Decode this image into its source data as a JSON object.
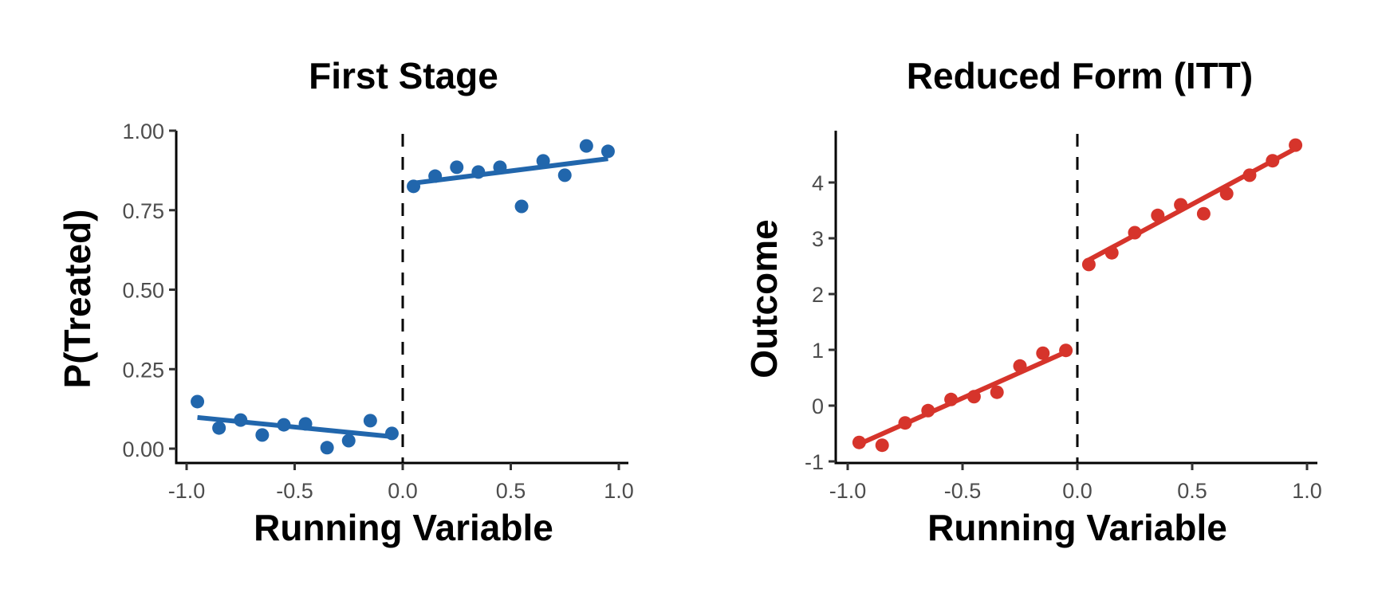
{
  "chart_data": [
    {
      "type": "scatter",
      "title": "First Stage",
      "xlabel": "Running Variable",
      "ylabel": "P(Treated)",
      "xlim": [
        -1.0,
        1.0
      ],
      "ylim": [
        0.0,
        1.0
      ],
      "xticks": [
        -1.0,
        -0.5,
        0.0,
        0.5,
        1.0
      ],
      "xtick_labels": [
        "-1.0",
        "-0.5",
        "0.0",
        "0.5",
        "1.0"
      ],
      "yticks": [
        0.0,
        0.25,
        0.5,
        0.75,
        1.0
      ],
      "ytick_labels": [
        "0.00",
        "0.25",
        "0.50",
        "0.75",
        "1.00"
      ],
      "grid": false,
      "cutoff": 0.0,
      "color": "#2166ac",
      "series": [
        {
          "name": "below cutoff",
          "x": [
            -0.95,
            -0.85,
            -0.75,
            -0.65,
            -0.55,
            -0.45,
            -0.35,
            -0.25,
            -0.15,
            -0.05
          ],
          "y": [
            0.148,
            0.065,
            0.09,
            0.043,
            0.075,
            0.078,
            0.003,
            0.025,
            0.088,
            0.048
          ],
          "fit": {
            "x": [
              -0.95,
              -0.05
            ],
            "y": [
              0.098,
              0.038
            ]
          }
        },
        {
          "name": "above cutoff",
          "x": [
            0.05,
            0.15,
            0.25,
            0.35,
            0.45,
            0.55,
            0.65,
            0.75,
            0.85,
            0.95
          ],
          "y": [
            0.825,
            0.857,
            0.885,
            0.87,
            0.885,
            0.762,
            0.905,
            0.86,
            0.952,
            0.935
          ],
          "fit": {
            "x": [
              0.05,
              0.95
            ],
            "y": [
              0.835,
              0.912
            ]
          }
        }
      ]
    },
    {
      "type": "scatter",
      "title": "Reduced Form (ITT)",
      "xlabel": "Running Variable",
      "ylabel": "Outcome",
      "xlim": [
        -1.0,
        1.0
      ],
      "ylim": [
        -1.0,
        4.9
      ],
      "xticks": [
        -1.0,
        -0.5,
        0.0,
        0.5,
        1.0
      ],
      "xtick_labels": [
        "-1.0",
        "-0.5",
        "0.0",
        "0.5",
        "1.0"
      ],
      "yticks": [
        -1,
        0,
        1,
        2,
        3,
        4
      ],
      "ytick_labels": [
        "-1",
        "0",
        "1",
        "2",
        "3",
        "4"
      ],
      "grid": false,
      "cutoff": 0.0,
      "color": "#d6342b",
      "series": [
        {
          "name": "below cutoff",
          "x": [
            -0.95,
            -0.85,
            -0.75,
            -0.65,
            -0.55,
            -0.45,
            -0.35,
            -0.25,
            -0.15,
            -0.05
          ],
          "y": [
            -0.66,
            -0.71,
            -0.31,
            -0.09,
            0.11,
            0.16,
            0.24,
            0.71,
            0.94,
            0.99
          ],
          "fit": {
            "x": [
              -0.95,
              -0.05
            ],
            "y": [
              -0.69,
              0.96
            ]
          }
        },
        {
          "name": "above cutoff",
          "x": [
            0.05,
            0.15,
            0.25,
            0.35,
            0.45,
            0.55,
            0.65,
            0.75,
            0.85,
            0.95
          ],
          "y": [
            2.53,
            2.74,
            3.1,
            3.41,
            3.6,
            3.44,
            3.8,
            4.13,
            4.39,
            4.67
          ],
          "fit": {
            "x": [
              0.04,
              0.96
            ],
            "y": [
              2.59,
              4.63
            ]
          }
        }
      ]
    }
  ]
}
